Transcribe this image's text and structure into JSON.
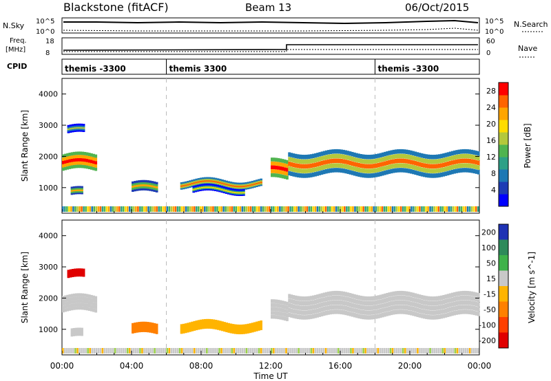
{
  "header": {
    "station": "Blackstone (fitACF)",
    "beam": "Beam 13",
    "date": "06/Oct/2015"
  },
  "strip_labels": {
    "nsky": "N.Sky",
    "nsky_top": "10^5",
    "nsky_bot": "10^0",
    "nsearch": "N.Search",
    "nsearch_top": "10^5",
    "nsearch_bot": "10^0",
    "freq": "Freq.",
    "freq_unit": "[MHz]",
    "freq_top": "18",
    "freq_bot": "8",
    "nave": "Nave",
    "nave_top": "60",
    "nave_bot": "0",
    "cpid": "CPID"
  },
  "cpid_segments": [
    {
      "start_hour": 0,
      "label": "themis -3300"
    },
    {
      "start_hour": 6,
      "label": "themis 3300"
    },
    {
      "start_hour": 18,
      "label": "themis -3300"
    }
  ],
  "x_axis": {
    "title": "Time UT",
    "ticks": [
      "00:00",
      "04:00",
      "08:00",
      "12:00",
      "16:00",
      "20:00",
      "00:00"
    ],
    "range_hours": [
      0,
      24
    ]
  },
  "colors": {
    "power_scale": [
      "#0000ff",
      "#1e3cb4",
      "#1e78b4",
      "#2ea087",
      "#50b450",
      "#b4c83c",
      "#ffdc00",
      "#ffa500",
      "#ff6400",
      "#ff0000"
    ]
  },
  "chart_data": [
    {
      "type": "heatmap",
      "name": "power",
      "ylabel": "Slant Range [km]",
      "yticks": [
        "1000",
        "2000",
        "3000",
        "4000"
      ],
      "ylim": [
        180,
        4500
      ],
      "xlim": [
        0,
        24
      ],
      "colorbar": {
        "label": "Power [dB]",
        "ticks": [
          "4",
          "8",
          "12",
          "16",
          "20",
          "24",
          "28"
        ],
        "range": [
          0,
          30
        ]
      },
      "echo_bands": [
        {
          "t0": 0.0,
          "t1": 2.0,
          "r_center": 1750,
          "r_width": 420,
          "value": 22
        },
        {
          "t0": 0.3,
          "t1": 1.3,
          "r_center": 2800,
          "r_width": 200,
          "value": 8
        },
        {
          "t0": 0.5,
          "t1": 1.2,
          "r_center": 800,
          "r_width": 200,
          "value": 14
        },
        {
          "t0": 4.0,
          "t1": 5.5,
          "r_center": 950,
          "r_width": 260,
          "value": 14
        },
        {
          "t0": 6.8,
          "t1": 11.5,
          "r_center": 1100,
          "r_width": 180,
          "value": 16
        },
        {
          "t0": 7.5,
          "t1": 10.5,
          "r_center": 900,
          "r_width": 160,
          "value": 12
        },
        {
          "t0": 12.0,
          "t1": 13.0,
          "r_center": 1500,
          "r_width": 500,
          "value": 22
        },
        {
          "t0": 13.0,
          "t1": 24.0,
          "r_center": 1700,
          "r_width": 600,
          "value": 18
        }
      ]
    },
    {
      "type": "heatmap",
      "name": "velocity",
      "ylabel": "Slant Range [km]",
      "yticks": [
        "1000",
        "2000",
        "3000",
        "4000"
      ],
      "ylim": [
        180,
        4500
      ],
      "xlim": [
        0,
        24
      ],
      "colorbar": {
        "label": "Velocity [m s^-1]",
        "ticks": [
          "200",
          "100",
          "50",
          "15",
          "-15",
          "-50",
          "-100",
          "-200"
        ]
      },
      "echo_bands": [
        {
          "t0": 0.0,
          "t1": 2.0,
          "r_center": 1750,
          "r_width": 420,
          "value": 0
        },
        {
          "t0": 0.3,
          "t1": 1.3,
          "r_center": 2700,
          "r_width": 200,
          "value": -200
        },
        {
          "t0": 0.5,
          "t1": 1.2,
          "r_center": 800,
          "r_width": 200,
          "value": 0
        },
        {
          "t0": 4.0,
          "t1": 5.5,
          "r_center": 950,
          "r_width": 260,
          "value": -60
        },
        {
          "t0": 6.8,
          "t1": 11.5,
          "r_center": 1050,
          "r_width": 240,
          "value": -40
        },
        {
          "t0": 12.0,
          "t1": 13.0,
          "r_center": 1500,
          "r_width": 500,
          "value": 0
        },
        {
          "t0": 13.0,
          "t1": 24.0,
          "r_center": 1700,
          "r_width": 600,
          "value": 0
        }
      ]
    }
  ]
}
